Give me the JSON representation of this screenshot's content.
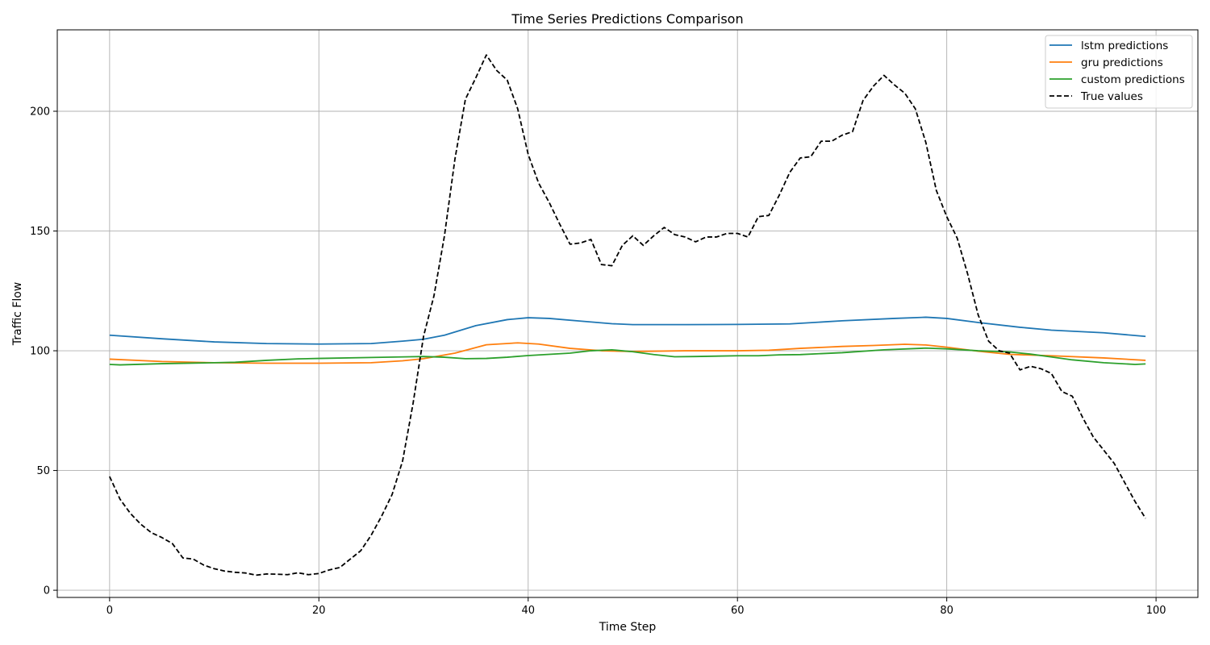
{
  "chart_data": {
    "type": "line",
    "title": "Time Series Predictions Comparison",
    "xlabel": "Time Step",
    "ylabel": "Traffic Flow",
    "xlim": [
      -5,
      104
    ],
    "ylim": [
      -3,
      234
    ],
    "xticks": [
      0,
      20,
      40,
      60,
      80,
      100
    ],
    "yticks": [
      0,
      50,
      100,
      150,
      200
    ],
    "grid": true,
    "legend_position": "top-right",
    "series": [
      {
        "name": "lstm predictions",
        "color": "#1f77b4",
        "dash": "solid",
        "points": [
          [
            0,
            106.5
          ],
          [
            5,
            105
          ],
          [
            10,
            103.7
          ],
          [
            15,
            103
          ],
          [
            20,
            102.8
          ],
          [
            25,
            103
          ],
          [
            28,
            104
          ],
          [
            30,
            104.8
          ],
          [
            32,
            106.5
          ],
          [
            35,
            110.5
          ],
          [
            38,
            113
          ],
          [
            40,
            113.8
          ],
          [
            42,
            113.5
          ],
          [
            45,
            112.4
          ],
          [
            48,
            111.3
          ],
          [
            50,
            110.9
          ],
          [
            55,
            110.9
          ],
          [
            60,
            111
          ],
          [
            65,
            111.2
          ],
          [
            70,
            112.5
          ],
          [
            75,
            113.5
          ],
          [
            78,
            114
          ],
          [
            80,
            113.5
          ],
          [
            83,
            111.8
          ],
          [
            87,
            109.8
          ],
          [
            90,
            108.6
          ],
          [
            95,
            107.5
          ],
          [
            99,
            106
          ]
        ]
      },
      {
        "name": "gru predictions",
        "color": "#ff7f0e",
        "dash": "solid",
        "points": [
          [
            0,
            96.5
          ],
          [
            5,
            95.5
          ],
          [
            10,
            95
          ],
          [
            15,
            94.8
          ],
          [
            20,
            94.8
          ],
          [
            25,
            95
          ],
          [
            28,
            95.8
          ],
          [
            30,
            96.7
          ],
          [
            33,
            99
          ],
          [
            36,
            102.5
          ],
          [
            39,
            103.3
          ],
          [
            41,
            102.8
          ],
          [
            44,
            101
          ],
          [
            47,
            100
          ],
          [
            50,
            99.7
          ],
          [
            55,
            100
          ],
          [
            60,
            100
          ],
          [
            63,
            100.2
          ],
          [
            66,
            101
          ],
          [
            70,
            101.8
          ],
          [
            73,
            102.2
          ],
          [
            76,
            102.7
          ],
          [
            78,
            102.4
          ],
          [
            80,
            101.5
          ],
          [
            83,
            99.8
          ],
          [
            86,
            98.5
          ],
          [
            90,
            97.9
          ],
          [
            95,
            97
          ],
          [
            99,
            96
          ]
        ]
      },
      {
        "name": "custom predictions",
        "color": "#2ca02c",
        "dash": "solid",
        "points": [
          [
            0,
            94.3
          ],
          [
            1,
            94.1
          ],
          [
            5,
            94.6
          ],
          [
            10,
            95
          ],
          [
            12,
            95.2
          ],
          [
            15,
            96
          ],
          [
            18,
            96.6
          ],
          [
            20,
            96.8
          ],
          [
            25,
            97.2
          ],
          [
            30,
            97.6
          ],
          [
            32,
            97.3
          ],
          [
            34,
            96.7
          ],
          [
            36,
            96.8
          ],
          [
            38,
            97.3
          ],
          [
            40,
            98
          ],
          [
            44,
            99
          ],
          [
            46,
            100
          ],
          [
            48,
            100.4
          ],
          [
            50,
            99.6
          ],
          [
            52,
            98.4
          ],
          [
            54,
            97.5
          ],
          [
            56,
            97.6
          ],
          [
            60,
            97.9
          ],
          [
            62,
            97.9
          ],
          [
            64,
            98.3
          ],
          [
            66,
            98.4
          ],
          [
            70,
            99.2
          ],
          [
            74,
            100.4
          ],
          [
            78,
            101.1
          ],
          [
            80,
            100.8
          ],
          [
            83,
            100
          ],
          [
            86,
            99.5
          ],
          [
            88,
            98.6
          ],
          [
            90,
            97.4
          ],
          [
            92,
            96.2
          ],
          [
            95,
            95
          ],
          [
            98,
            94.3
          ],
          [
            99,
            94.5
          ]
        ]
      },
      {
        "name": "True values",
        "color": "#000000",
        "dash": "dashed",
        "points": [
          [
            0,
            47.5
          ],
          [
            1,
            38
          ],
          [
            2,
            32
          ],
          [
            3,
            27.5
          ],
          [
            4,
            24
          ],
          [
            5,
            22
          ],
          [
            6,
            19.5
          ],
          [
            7,
            13.5
          ],
          [
            8,
            13
          ],
          [
            9,
            10.5
          ],
          [
            10,
            9
          ],
          [
            11,
            8
          ],
          [
            12,
            7.5
          ],
          [
            13,
            7.2
          ],
          [
            14,
            6.3
          ],
          [
            15,
            6.8
          ],
          [
            16,
            6.7
          ],
          [
            17,
            6.5
          ],
          [
            18,
            7.3
          ],
          [
            19,
            6.5
          ],
          [
            20,
            7
          ],
          [
            21,
            8.5
          ],
          [
            22,
            9.5
          ],
          [
            23,
            13
          ],
          [
            24,
            16.5
          ],
          [
            25,
            23
          ],
          [
            26,
            31
          ],
          [
            27,
            40
          ],
          [
            28,
            54
          ],
          [
            29,
            78
          ],
          [
            30,
            106
          ],
          [
            31,
            123
          ],
          [
            32,
            148
          ],
          [
            33,
            180
          ],
          [
            34,
            205
          ],
          [
            35,
            214
          ],
          [
            36,
            223.5
          ],
          [
            37,
            217
          ],
          [
            38,
            213
          ],
          [
            39,
            201
          ],
          [
            40,
            182
          ],
          [
            41,
            170
          ],
          [
            42,
            162
          ],
          [
            43,
            153
          ],
          [
            44,
            144.5
          ],
          [
            45,
            145
          ],
          [
            46,
            146.5
          ],
          [
            47,
            136
          ],
          [
            48,
            135.5
          ],
          [
            49,
            144
          ],
          [
            50,
            148
          ],
          [
            51,
            144
          ],
          [
            52,
            148
          ],
          [
            53,
            151.5
          ],
          [
            54,
            148.5
          ],
          [
            55,
            147.5
          ],
          [
            56,
            145.5
          ],
          [
            57,
            147.5
          ],
          [
            58,
            147.5
          ],
          [
            59,
            149
          ],
          [
            60,
            149
          ],
          [
            61,
            147.5
          ],
          [
            62,
            156
          ],
          [
            63,
            156.5
          ],
          [
            64,
            165
          ],
          [
            65,
            174.5
          ],
          [
            66,
            180.5
          ],
          [
            67,
            181
          ],
          [
            68,
            187.5
          ],
          [
            69,
            187.5
          ],
          [
            70,
            190
          ],
          [
            71,
            191.5
          ],
          [
            72,
            204.5
          ],
          [
            73,
            210.5
          ],
          [
            74,
            215
          ],
          [
            75,
            211
          ],
          [
            76,
            207.5
          ],
          [
            77,
            201
          ],
          [
            78,
            187
          ],
          [
            79,
            167
          ],
          [
            80,
            156
          ],
          [
            81,
            147
          ],
          [
            82,
            132
          ],
          [
            83,
            115
          ],
          [
            84,
            104
          ],
          [
            85,
            100
          ],
          [
            86,
            99
          ],
          [
            87,
            92
          ],
          [
            88,
            93.5
          ],
          [
            89,
            92.5
          ],
          [
            90,
            90.5
          ],
          [
            91,
            83
          ],
          [
            92,
            81
          ],
          [
            93,
            72
          ],
          [
            94,
            64
          ],
          [
            95,
            58.5
          ],
          [
            96,
            53
          ],
          [
            97,
            45
          ],
          [
            98,
            37
          ],
          [
            99,
            30
          ]
        ]
      }
    ]
  }
}
